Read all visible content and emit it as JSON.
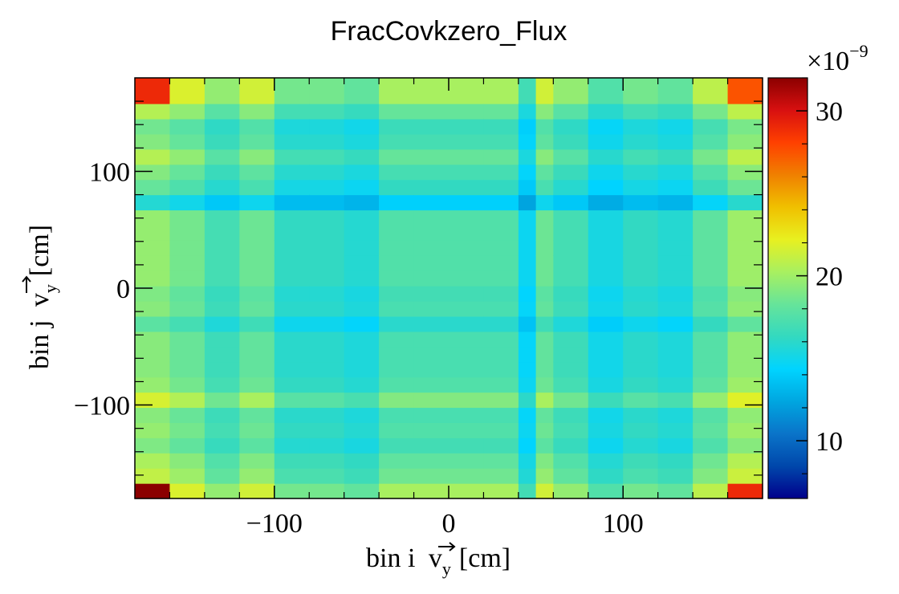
{
  "chart_data": {
    "type": "heatmap",
    "title": "FracCovkzero_Flux",
    "xlabel": "bin i",
    "ylabel": "bin j",
    "axis_var": "v",
    "axis_sub": "y",
    "axis_unit": "[cm]",
    "xlim": [
      -180,
      180
    ],
    "ylim": [
      -180,
      180
    ],
    "xticks": [
      {
        "value": -100,
        "label": "−100"
      },
      {
        "value": 0,
        "label": "0"
      },
      {
        "value": 100,
        "label": "100"
      }
    ],
    "yticks": [
      {
        "value": -100,
        "label": "−100"
      },
      {
        "value": 0,
        "label": "0"
      },
      {
        "value": 100,
        "label": "100"
      }
    ],
    "x_edges": [
      -180,
      -160,
      -140,
      -120,
      -100,
      -80,
      -60,
      -40,
      -20,
      0,
      20,
      40,
      50,
      60,
      80,
      100,
      120,
      140,
      160,
      180
    ],
    "y_edges": [
      -180,
      -167,
      -154,
      -141,
      -128,
      -115,
      -102,
      -89,
      -76,
      -63,
      -50,
      -37,
      -24,
      -11,
      2,
      15,
      28,
      41,
      54,
      67,
      80,
      93,
      106,
      119,
      132,
      145,
      158,
      180
    ],
    "x_weights": [
      1.08,
      1.0,
      0.86,
      0.98,
      0.8,
      0.8,
      0.76,
      0.9,
      0.9,
      0.9,
      0.9,
      0.68,
      0.98,
      0.86,
      0.72,
      0.8,
      0.76,
      0.94,
      1.1
    ],
    "y_weights": [
      1.25,
      1.1,
      1.05,
      0.95,
      1.0,
      0.97,
      1.15,
      1.0,
      0.97,
      0.97,
      0.97,
      0.86,
      0.97,
      0.95,
      1.0,
      1.0,
      1.0,
      1.0,
      1.0,
      0.7,
      0.89,
      0.96,
      1.07,
      0.96,
      0.92,
      1.07,
      1.25
    ],
    "z_formula": "z = 6.5 + 12.2 * x_weight * y_weight, with corners set explicitly",
    "corner_overrides": [
      {
        "i": 0,
        "j": 0,
        "z": 32.0
      },
      {
        "i": 18,
        "j": 0,
        "z": 29.0
      },
      {
        "i": 0,
        "j": 26,
        "z": 29.0
      },
      {
        "i": 18,
        "j": 26,
        "z": 27.5
      }
    ],
    "zlim": [
      6.5,
      32.0
    ],
    "colorbar": {
      "multiplier": "×10",
      "exponent": "−9",
      "ticks": [
        {
          "value": 10,
          "label": "10"
        },
        {
          "value": 20,
          "label": "20"
        },
        {
          "value": 30,
          "label": "30"
        }
      ],
      "palette": [
        "#00008b",
        "#0047ab",
        "#0a74c9",
        "#00a6e0",
        "#00d4ff",
        "#33d9c0",
        "#66e49a",
        "#a8f060",
        "#e8f020",
        "#f0c000",
        "#f08000",
        "#ff4000",
        "#d81010",
        "#8b0000"
      ]
    },
    "grid": false,
    "legend": "none"
  }
}
